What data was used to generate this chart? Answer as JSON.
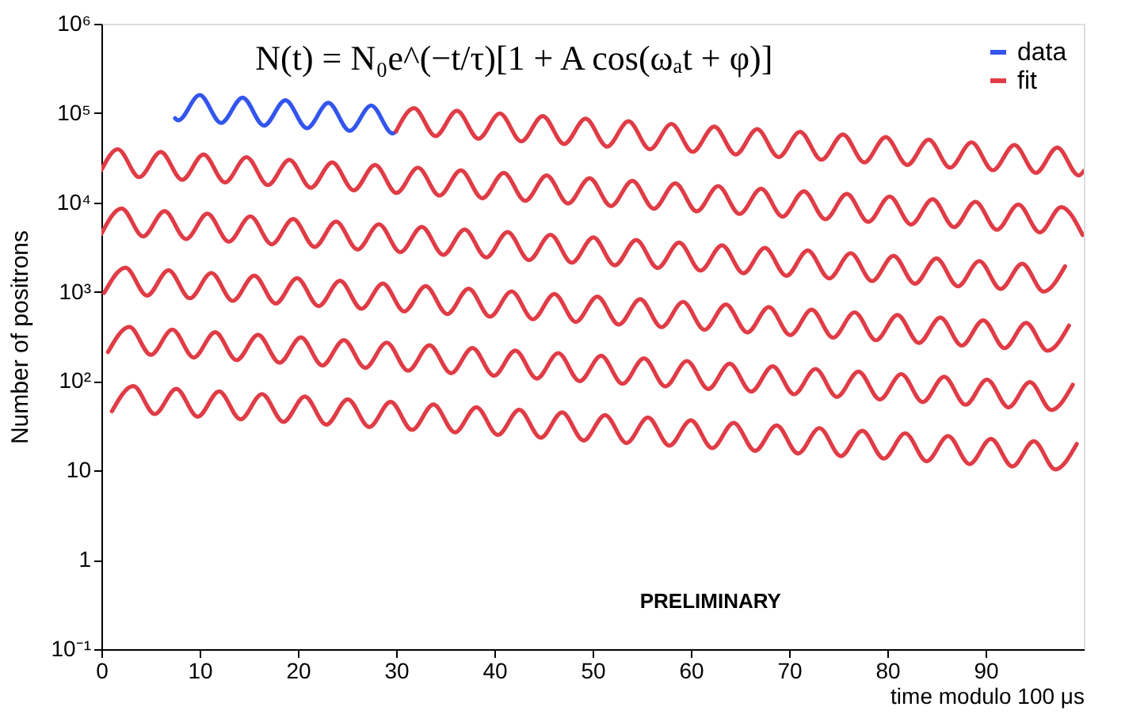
{
  "chart_data": {
    "type": "line",
    "xlabel": "time modulo 100 μs",
    "ylabel": "Number of positrons",
    "annotations": [
      "N(t) = N₀e^(−t/τ)[1 + A cos(ωₐt + φ)]",
      "PRELIMINARY"
    ],
    "log": "y",
    "grid": false,
    "legend": "top right",
    "xlim": [
      0,
      100
    ],
    "xticks": [
      0,
      10,
      20,
      30,
      40,
      50,
      60,
      70,
      80,
      90
    ],
    "ylim": [
      0.1,
      1000000
    ],
    "yticks": [
      {
        "value": 0.1,
        "label": "10⁻¹"
      },
      1,
      10,
      {
        "value": 100,
        "label": "10²"
      },
      {
        "value": 1000,
        "label": "10³"
      },
      {
        "value": 10000,
        "label": "10⁴"
      },
      {
        "value": 100000,
        "label": "10⁵"
      },
      {
        "value": 1000000,
        "label": "10⁶"
      }
    ],
    "series": [
      {
        "name": "data",
        "color": "#3355ee",
        "x": [
          7.5,
          7.82,
          10.0,
          12.19,
          14.37,
          16.55,
          18.73,
          20.92,
          23.1,
          25.28,
          27.46,
          29.65,
          30
        ],
        "values": [
          87700,
          83100,
          159400,
          77660,
          149000,
          72570,
          139200,
          67820,
          130100,
          63370,
          121600,
          59230,
          62500
        ]
      },
      {
        "name": "fit",
        "color": "#e03c46",
        "x": [
          30,
          31.83,
          34.01,
          36.19,
          38.38,
          40.56,
          42.74,
          44.92,
          47.1,
          49.29,
          51.47,
          53.65,
          55.84,
          58.02,
          60.2,
          62.38,
          64.57,
          66.75,
          68.93,
          71.11,
          73.3,
          75.48,
          77.66,
          79.84,
          82.03,
          84.21,
          86.39,
          88.57,
          90.75,
          92.94,
          95.12,
          97.3,
          99.48,
          100
        ],
        "values": [
          62500,
          113600,
          55340,
          106200,
          51720,
          99220,
          48330,
          92720,
          45160,
          86640,
          42210,
          80970,
          39450,
          75670,
          36860,
          70710,
          34440,
          66080,
          32190,
          61760,
          30080,
          57720,
          28110,
          53940,
          26280,
          50390,
          24560,
          47100,
          22940,
          44010,
          21440,
          41130,
          20040,
          22500
        ]
      },
      {
        "color": "#e03c46",
        "x": [
          0,
          1.67,
          3.85,
          6.04,
          8.22,
          10.4,
          12.58,
          14.77,
          16.95,
          19.13,
          21.31,
          23.5,
          25.68,
          27.86,
          30.04,
          32.22,
          34.41,
          36.59,
          38.77,
          40.96,
          43.14,
          45.32,
          47.5,
          49.69,
          51.87,
          54.05,
          56.23,
          58.42,
          60.6,
          62.78,
          64.96,
          67.15,
          69.33,
          71.51,
          73.69,
          75.88,
          78.06,
          80.24,
          82.42,
          84.61,
          86.79,
          88.97,
          91.15,
          93.34,
          95.52,
          97.7,
          99.88
        ],
        "values": [
          23000,
          39390,
          19190,
          36810,
          17930,
          34400,
          16760,
          32150,
          15660,
          30040,
          14630,
          28070,
          13680,
          26230,
          12780,
          24520,
          11940,
          22910,
          11160,
          21410,
          10430,
          20010,
          9746,
          18700,
          9109,
          17470,
          8512,
          16330,
          7954,
          15260,
          7434,
          14260,
          6948,
          13330,
          6493,
          12460,
          6066,
          11640,
          5669,
          10880,
          5298,
          10160,
          4951,
          9497,
          4627,
          8875,
          4323
        ]
      },
      {
        "color": "#e03c46",
        "x": [
          0,
          2.06,
          4.24,
          6.43,
          8.61,
          10.79,
          12.97,
          15.16,
          17.34,
          19.52,
          21.7,
          23.89,
          26.07,
          28.25,
          30.43,
          32.61,
          34.8,
          36.98,
          39.16,
          41.35,
          43.53,
          45.71,
          47.89,
          50.08,
          52.26,
          54.44,
          56.62,
          58.81,
          60.99,
          63.17,
          65.35,
          67.54,
          69.72,
          71.9,
          74.08,
          76.27,
          78.45,
          80.63,
          82.81,
          85.0,
          87.18,
          89.36,
          91.54,
          93.73,
          95.91,
          98.09
        ],
        "values": [
          4461,
          8563,
          4172,
          8003,
          3898,
          7479,
          3644,
          6989,
          3404,
          6531,
          3181,
          6102,
          2974,
          5702,
          2778,
          5331,
          2596,
          4981,
          2426,
          4655,
          2268,
          4350,
          2119,
          4065,
          1980,
          3798,
          1850,
          3550,
          1729,
          3318,
          1616,
          3100,
          1510,
          2898,
          1412,
          2709,
          1319,
          2531,
          1232,
          2365,
          1152,
          2209,
          1076,
          2065,
          1006,
          1929
        ]
      },
      {
        "color": "#e03c46",
        "x": [
          0.28,
          2.46,
          4.64,
          6.83,
          9.01,
          11.19,
          13.37,
          15.56,
          17.74,
          19.92,
          22.1,
          24.29,
          26.47,
          28.65,
          30.83,
          33.01,
          35.2,
          37.38,
          39.56,
          41.75,
          43.93,
          46.11,
          48.29,
          50.48,
          52.66,
          54.84,
          57.02,
          59.21,
          61.39,
          63.57,
          65.75,
          67.94,
          70.12,
          72.3,
          74.48,
          76.67,
          78.85,
          81.03,
          83.21,
          85.4,
          87.58,
          89.76,
          91.94,
          94.13,
          96.31,
          98.49
        ],
        "values": [
          970,
          1862,
          907,
          1740,
          847,
          1626,
          792,
          1519,
          740,
          1420,
          692,
          1327,
          647,
          1240,
          604,
          1159,
          564,
          1083,
          527,
          1012,
          493,
          946,
          461,
          884,
          430,
          826,
          402,
          772,
          376,
          721,
          351,
          674,
          328,
          630,
          307,
          589,
          287,
          550,
          268,
          514,
          250,
          480,
          234,
          449,
          219,
          419
        ]
      },
      {
        "color": "#e03c46",
        "x": [
          0.67,
          2.85,
          5.03,
          7.22,
          9.4,
          11.58,
          13.76,
          15.95,
          18.13,
          20.31,
          22.49,
          24.68,
          26.86,
          29.04,
          31.22,
          33.4,
          35.59,
          37.77,
          39.95,
          42.14,
          44.32,
          46.5,
          48.68,
          50.87,
          53.05,
          55.23,
          57.41,
          59.6,
          61.78,
          63.96,
          66.14,
          68.33,
          70.51,
          72.69,
          74.87,
          77.06,
          79.24,
          81.42,
          83.6,
          85.79,
          87.97,
          90.15,
          92.33,
          94.52,
          96.7,
          98.88
        ],
        "values": [
          211,
          405,
          197,
          378,
          184,
          353,
          172,
          330,
          161,
          309,
          150,
          288,
          141,
          270,
          131,
          252,
          123,
          235,
          115,
          220,
          107,
          206,
          100,
          192,
          93.5,
          180,
          87.4,
          168,
          81.7,
          157,
          76.3,
          147,
          71.3,
          137,
          66.7,
          128,
          62.4,
          120,
          58.3,
          112,
          54.4,
          104,
          50.9,
          97.6,
          47.6,
          91.1
        ]
      },
      {
        "color": "#e03c46",
        "x": [
          1.07,
          3.25,
          5.43,
          7.62,
          9.8,
          11.98,
          14.16,
          16.35,
          18.53,
          20.71,
          22.89,
          25.08,
          27.26,
          29.44,
          31.62,
          33.8,
          35.99,
          38.17,
          40.35,
          42.54,
          44.72,
          46.9,
          49.08,
          51.27,
          53.45,
          55.63,
          57.81,
          60.0,
          62.18,
          64.36,
          66.54,
          68.73,
          70.91,
          73.09,
          75.27,
          77.46,
          79.64,
          81.82,
          84.0,
          86.19,
          88.37,
          90.55,
          92.73,
          94.92,
          97.1,
          99.28
        ],
        "values": [
          45.9,
          88.0,
          42.8,
          82.2,
          40.0,
          76.7,
          37.4,
          71.7,
          35.0,
          67.2,
          32.6,
          62.6,
          30.7,
          58.7,
          28.5,
          54.8,
          26.7,
          51.1,
          25.0,
          47.8,
          23.3,
          44.8,
          21.7,
          41.7,
          20.3,
          39.1,
          19.0,
          36.5,
          17.8,
          34.1,
          16.6,
          32.0,
          15.5,
          29.8,
          14.5,
          27.8,
          13.6,
          26.1,
          12.7,
          24.3,
          11.8,
          22.6,
          11.1,
          21.2,
          10.3,
          19.8
        ]
      }
    ]
  }
}
